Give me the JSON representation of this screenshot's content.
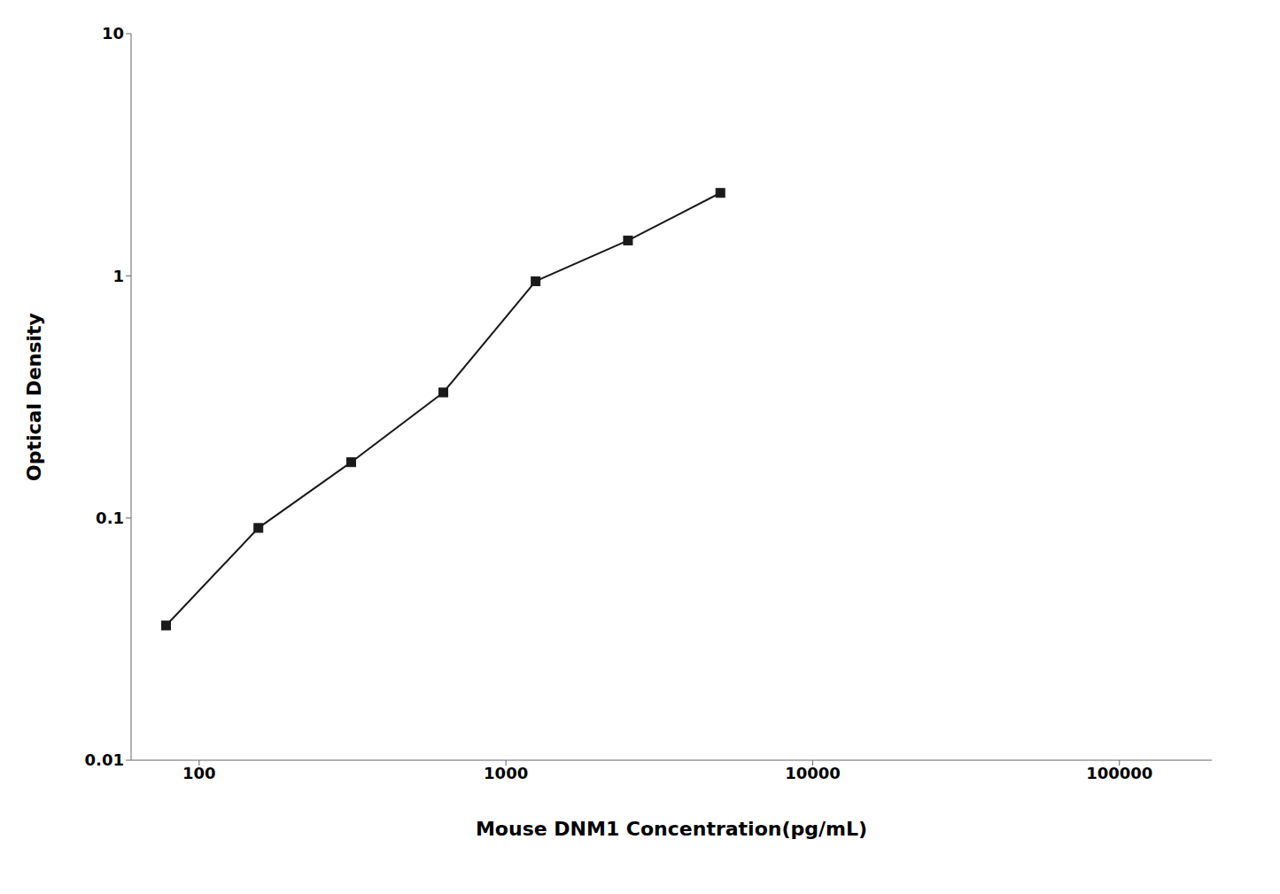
{
  "chart_data": {
    "type": "line",
    "x": [
      78,
      156,
      313,
      625,
      1250,
      2500,
      5000
    ],
    "values": [
      0.036,
      0.091,
      0.17,
      0.33,
      0.95,
      1.4,
      2.2
    ],
    "xlabel": "Mouse DNM1 Concentration(pg/mL)",
    "ylabel": "Optical Density",
    "xlim": [
      60,
      200000
    ],
    "ylim": [
      0.01,
      10
    ],
    "xticks": [
      100,
      1000,
      10000,
      100000
    ],
    "yticks": [
      0.01,
      0.1,
      1,
      10
    ],
    "log": true,
    "grid": false,
    "color": "#1a1a1a",
    "marker": "square"
  }
}
